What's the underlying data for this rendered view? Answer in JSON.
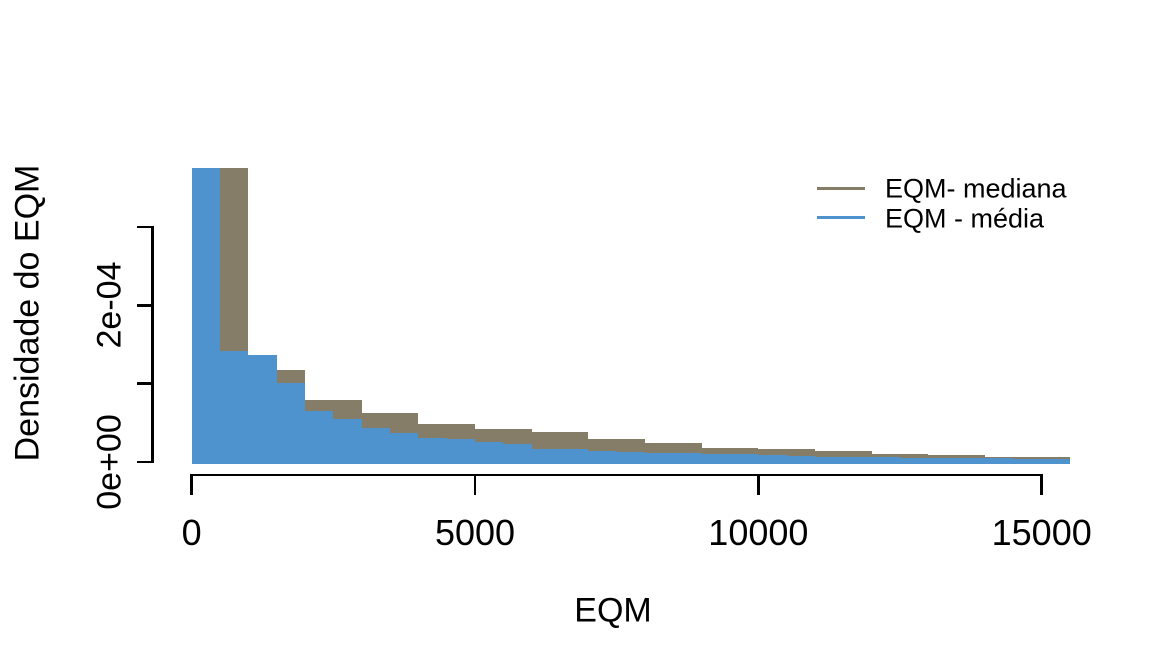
{
  "figure": {
    "background": "#ffffff",
    "xlabel": "EQM",
    "ylabel": "Densidade do EQM",
    "legend": {
      "items": [
        {
          "key": "mediana",
          "label": "EQM- mediana",
          "color": "#867D68"
        },
        {
          "key": "media",
          "label": "EQM - média",
          "color": "#4E92CE"
        }
      ]
    }
  },
  "chart_data": {
    "type": "bar",
    "subtype": "overlaid-histograms",
    "title": "",
    "xlabel": "EQM",
    "ylabel": "Densidade do EQM",
    "xlim": [
      0,
      15500
    ],
    "ylim": [
      0,
      0.00038
    ],
    "grid": false,
    "legend_position": "top-right",
    "x_ticks": [
      {
        "value": 0,
        "label": "0"
      },
      {
        "value": 5000,
        "label": "5000"
      },
      {
        "value": 10000,
        "label": "10000"
      },
      {
        "value": 15000,
        "label": "15000"
      }
    ],
    "y_ticks": [
      {
        "value": 0.0,
        "label": "0e+00"
      },
      {
        "value": 0.0001,
        "label": ""
      },
      {
        "value": 0.0002,
        "label": "2e-04"
      },
      {
        "value": 0.0003,
        "label": ""
      }
    ],
    "series": [
      {
        "name": "EQM- mediana",
        "key": "mediana",
        "color": "#867D68",
        "bin_width": 1000,
        "bins": [
          {
            "from": 0,
            "to": 1000,
            "density": 0.000376
          },
          {
            "from": 1000,
            "to": 2000,
            "density": 0.000117
          },
          {
            "from": 2000,
            "to": 3000,
            "density": 7.9e-05
          },
          {
            "from": 3000,
            "to": 4000,
            "density": 6.2e-05
          },
          {
            "from": 4000,
            "to": 5000,
            "density": 4.9e-05
          },
          {
            "from": 5000,
            "to": 6000,
            "density": 4.2e-05
          },
          {
            "from": 6000,
            "to": 7000,
            "density": 3.8e-05
          },
          {
            "from": 7000,
            "to": 8000,
            "density": 2.9e-05
          },
          {
            "from": 8000,
            "to": 9000,
            "density": 2.4e-05
          },
          {
            "from": 9000,
            "to": 10000,
            "density": 1.85e-05
          },
          {
            "from": 10000,
            "to": 11000,
            "density": 1.6e-05
          },
          {
            "from": 11000,
            "to": 12000,
            "density": 1.4e-05
          },
          {
            "from": 12000,
            "to": 13000,
            "density": 1.05e-05
          },
          {
            "from": 13000,
            "to": 14000,
            "density": 8.5e-06
          },
          {
            "from": 14000,
            "to": 15000,
            "density": 7e-06
          },
          {
            "from": 15000,
            "to": 15500,
            "density": 6e-06
          }
        ]
      },
      {
        "name": "EQM - média",
        "key": "media",
        "color": "#4E92CE",
        "bin_width": 500,
        "bins": [
          {
            "from": 0,
            "to": 500,
            "density": 0.000376
          },
          {
            "from": 500,
            "to": 1000,
            "density": 0.000142
          },
          {
            "from": 1000,
            "to": 1500,
            "density": 0.000137
          },
          {
            "from": 1500,
            "to": 2000,
            "density": 0.000101
          },
          {
            "from": 2000,
            "to": 2500,
            "density": 6.5e-05
          },
          {
            "from": 2500,
            "to": 3000,
            "density": 5.5e-05
          },
          {
            "from": 3000,
            "to": 3500,
            "density": 4.3e-05
          },
          {
            "from": 3500,
            "to": 4000,
            "density": 3.7e-05
          },
          {
            "from": 4000,
            "to": 4500,
            "density": 3.1e-05
          },
          {
            "from": 4500,
            "to": 5000,
            "density": 2.9e-05
          },
          {
            "from": 5000,
            "to": 5500,
            "density": 2.5e-05
          },
          {
            "from": 5500,
            "to": 6000,
            "density": 2.3e-05
          },
          {
            "from": 6000,
            "to": 6500,
            "density": 1.7e-05
          },
          {
            "from": 6500,
            "to": 7000,
            "density": 1.6e-05
          },
          {
            "from": 7000,
            "to": 7500,
            "density": 1.4e-05
          },
          {
            "from": 7500,
            "to": 8000,
            "density": 1.3e-05
          },
          {
            "from": 8000,
            "to": 8500,
            "density": 1.2e-05
          },
          {
            "from": 8500,
            "to": 9000,
            "density": 1.2e-05
          },
          {
            "from": 9000,
            "to": 9500,
            "density": 1e-05
          },
          {
            "from": 9500,
            "to": 10000,
            "density": 1e-05
          },
          {
            "from": 10000,
            "to": 10500,
            "density": 9e-06
          },
          {
            "from": 10500,
            "to": 11000,
            "density": 8e-06
          },
          {
            "from": 11000,
            "to": 11500,
            "density": 7e-06
          },
          {
            "from": 11500,
            "to": 12000,
            "density": 6.5e-06
          },
          {
            "from": 12000,
            "to": 12500,
            "density": 6e-06
          },
          {
            "from": 12500,
            "to": 13000,
            "density": 5.5e-06
          },
          {
            "from": 13000,
            "to": 13500,
            "density": 5e-06
          },
          {
            "from": 13500,
            "to": 14000,
            "density": 5e-06
          },
          {
            "from": 14000,
            "to": 14500,
            "density": 4.5e-06
          },
          {
            "from": 14500,
            "to": 15000,
            "density": 4e-06
          },
          {
            "from": 15000,
            "to": 15500,
            "density": 4e-06
          }
        ]
      }
    ]
  }
}
